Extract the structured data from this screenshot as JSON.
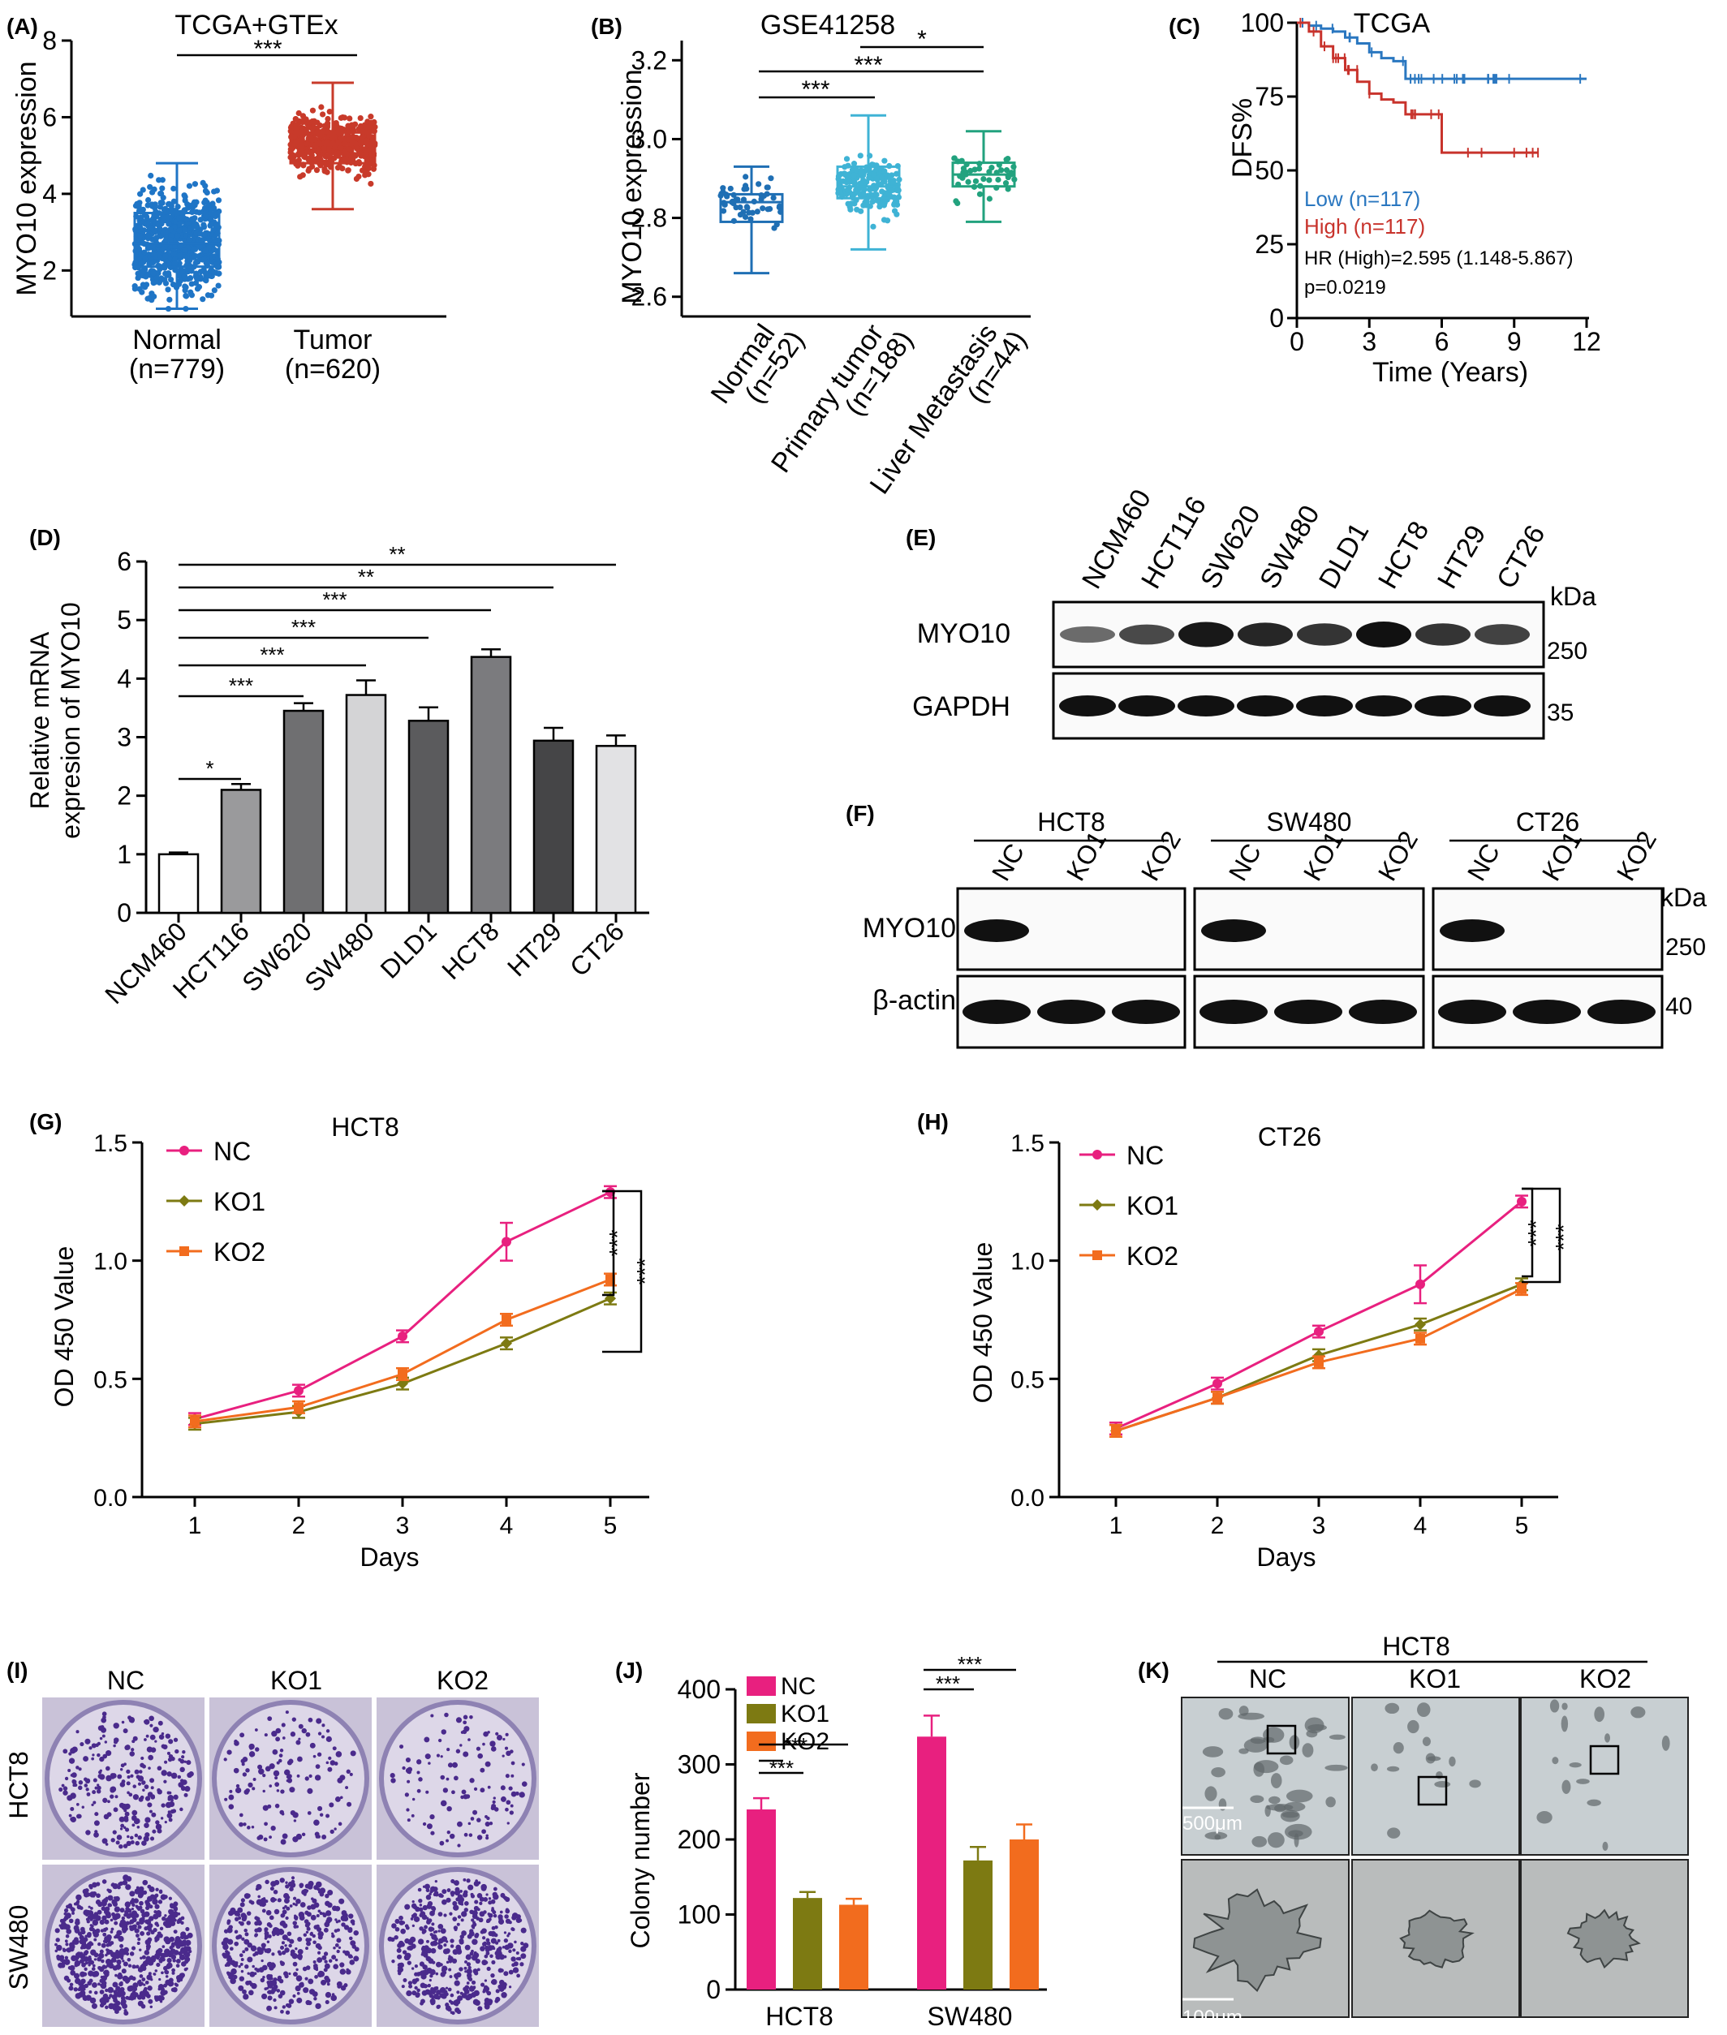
{
  "figure": {
    "panels": {
      "A": {
        "letter": "(A)",
        "title": "TCGA+GTEx",
        "ylabel": "MYO10 expression",
        "yticks": [
          "2",
          "4",
          "6",
          "8"
        ],
        "groups": [
          {
            "name": "Normal",
            "n": "(n=779)"
          },
          {
            "name": "Tumor",
            "n": "(n=620)"
          }
        ],
        "sig": "***"
      },
      "B": {
        "letter": "(B)",
        "title": "GSE41258",
        "ylabel": "MYO10 expression",
        "yticks": [
          "2.6",
          "2.8",
          "3.0",
          "3.2"
        ],
        "groups": [
          {
            "name": "Normal",
            "n": "(n=52)"
          },
          {
            "name": "Primary tumor",
            "n": "(n=188)"
          },
          {
            "name": "Liver Metastasis",
            "n": "(n=44)"
          }
        ],
        "sig": [
          "***",
          "***",
          "*"
        ]
      },
      "C": {
        "letter": "(C)",
        "title": "TCGA",
        "ylabel": "DFS%",
        "xlabel": "Time (Years)",
        "yticks": [
          "0",
          "25",
          "50",
          "75",
          "100"
        ],
        "xticks": [
          "0",
          "3",
          "6",
          "9",
          "12"
        ],
        "legend_low": "Low (n=117)",
        "legend_high": "High (n=117)",
        "hr": "HR (High)=2.595 (1.148-5.867)",
        "p": "p=0.0219"
      },
      "D": {
        "letter": "(D)",
        "ylabel_line1": "Relative mRNA",
        "ylabel_line2": "expresion of MYO10",
        "yticks": [
          "0",
          "1",
          "2",
          "3",
          "4",
          "5",
          "6"
        ],
        "sig": [
          "*",
          "***",
          "***",
          "***",
          "***",
          "**",
          "**"
        ]
      },
      "E": {
        "letter": "(E)",
        "lanes": [
          "NCM460",
          "HCT116",
          "SW620",
          "SW480",
          "DLD1",
          "HCT8",
          "HT29",
          "CT26"
        ],
        "rows": [
          "MYO10",
          "GAPDH"
        ],
        "kda": "kDa",
        "markers": [
          "250",
          "35"
        ]
      },
      "F": {
        "letter": "(F)",
        "groups": [
          "HCT8",
          "SW480",
          "CT26"
        ],
        "lanes": [
          "NC",
          "KO1",
          "KO2"
        ],
        "rows": [
          "MYO10",
          "β-actin"
        ],
        "kda": "kDa",
        "markers": [
          "250",
          "40"
        ]
      },
      "G": {
        "letter": "(G)",
        "title": "HCT8",
        "ylabel": "OD 450 Value",
        "xlabel": "Days",
        "yticks": [
          "0.0",
          "0.5",
          "1.0",
          "1.5"
        ],
        "xticks": [
          "1",
          "2",
          "3",
          "4",
          "5"
        ],
        "sig": [
          "***",
          "***"
        ]
      },
      "H": {
        "letter": "(H)",
        "title": "CT26",
        "ylabel": "OD 450 Value",
        "xlabel": "Days",
        "yticks": [
          "0.0",
          "0.5",
          "1.0",
          "1.5"
        ],
        "xticks": [
          "1",
          "2",
          "3",
          "4",
          "5"
        ],
        "sig": [
          "***",
          "***"
        ]
      },
      "I": {
        "letter": "(I)",
        "cols": [
          "NC",
          "KO1",
          "KO2"
        ],
        "rows": [
          "HCT8",
          "SW480"
        ]
      },
      "J": {
        "letter": "(J)",
        "ylabel": "Colony number",
        "yticks": [
          "0",
          "100",
          "200",
          "300",
          "400"
        ],
        "groups": [
          "HCT8",
          "SW480"
        ],
        "sig": [
          "***",
          "***",
          "***",
          "***"
        ]
      },
      "K": {
        "letter": "(K)",
        "title": "HCT8",
        "cols": [
          "NC",
          "KO1",
          "KO2"
        ],
        "scale_top": "500μm",
        "scale_bottom": "100μm"
      }
    },
    "colors": {
      "low": "#2a77c0",
      "high": "#c8332c",
      "nc": "#e8207f",
      "ko1": "#7d7a12",
      "ko2": "#f26c1e",
      "normalA": "#1f75c6",
      "tumorA": "#c83a2a",
      "normalB": "#1f6fb4",
      "primaryB": "#3fb3d5",
      "metB": "#22a27e",
      "crystal_violet": "#4a2a8c"
    }
  },
  "chart_data": [
    {
      "panel": "A",
      "type": "box",
      "title": "TCGA+GTEx",
      "ylabel": "MYO10 expression",
      "ylim": [
        0.8,
        8
      ],
      "categories": [
        "Normal (n=779)",
        "Tumor (n=620)"
      ],
      "boxes": [
        {
          "name": "Normal",
          "min": 1.0,
          "q1": 2.1,
          "median": 2.7,
          "q3": 3.5,
          "max": 4.8
        },
        {
          "name": "Tumor",
          "min": 3.6,
          "q1": 4.8,
          "median": 5.3,
          "q3": 5.6,
          "max": 6.9
        }
      ]
    },
    {
      "panel": "B",
      "type": "box",
      "title": "GSE41258",
      "ylabel": "MYO10 expression",
      "ylim": [
        2.55,
        3.25
      ],
      "categories": [
        "Normal (n=52)",
        "Primary tumor (n=188)",
        "Liver Metastasis (n=44)"
      ],
      "boxes": [
        {
          "name": "Normal",
          "min": 2.66,
          "q1": 2.79,
          "median": 2.84,
          "q3": 2.86,
          "max": 2.93
        },
        {
          "name": "Primary tumor",
          "min": 2.72,
          "q1": 2.85,
          "median": 2.88,
          "q3": 2.93,
          "max": 3.06
        },
        {
          "name": "Liver Metastasis",
          "min": 2.79,
          "q1": 2.88,
          "median": 2.91,
          "q3": 2.94,
          "max": 3.02
        }
      ]
    },
    {
      "panel": "C",
      "type": "line",
      "title": "TCGA",
      "xlabel": "Time (Years)",
      "ylabel": "DFS%",
      "xlim": [
        0,
        12
      ],
      "ylim": [
        0,
        100
      ],
      "series": [
        {
          "name": "Low (n=117)",
          "x": [
            0,
            0.5,
            1,
            1.5,
            2,
            2.5,
            3,
            3.5,
            4,
            4.5,
            6,
            9,
            12
          ],
          "y": [
            100,
            99,
            98,
            97,
            95,
            93,
            90,
            88,
            87,
            81,
            81,
            81,
            81
          ]
        },
        {
          "name": "High (n=117)",
          "x": [
            0,
            0.5,
            1,
            1.5,
            2,
            2.5,
            3,
            3.5,
            4,
            4.5,
            6,
            10
          ],
          "y": [
            100,
            97,
            92,
            88,
            84,
            80,
            76,
            74,
            73,
            69,
            56,
            56
          ]
        }
      ]
    },
    {
      "panel": "D",
      "type": "bar",
      "ylabel": "Relative mRNA expresion of MYO10",
      "ylim": [
        0,
        6
      ],
      "categories": [
        "NCM460",
        "HCT116",
        "SW620",
        "SW480",
        "DLD1",
        "HCT8",
        "HT29",
        "CT26"
      ],
      "values": [
        1.0,
        2.1,
        3.45,
        3.72,
        3.28,
        4.37,
        2.94,
        2.85
      ],
      "errors": [
        0.03,
        0.1,
        0.13,
        0.25,
        0.23,
        0.13,
        0.22,
        0.18
      ]
    },
    {
      "panel": "G",
      "type": "line",
      "title": "HCT8",
      "xlabel": "Days",
      "ylabel": "OD 450 Value",
      "ylim": [
        0,
        1.5
      ],
      "x": [
        1,
        2,
        3,
        4,
        5
      ],
      "series": [
        {
          "name": "NC",
          "values": [
            0.33,
            0.45,
            0.68,
            1.08,
            1.29
          ]
        },
        {
          "name": "KO1",
          "values": [
            0.31,
            0.36,
            0.48,
            0.65,
            0.84
          ]
        },
        {
          "name": "KO2",
          "values": [
            0.32,
            0.38,
            0.52,
            0.75,
            0.92
          ]
        }
      ]
    },
    {
      "panel": "H",
      "type": "line",
      "title": "CT26",
      "xlabel": "Days",
      "ylabel": "OD 450 Value",
      "ylim": [
        0,
        1.5
      ],
      "x": [
        1,
        2,
        3,
        4,
        5
      ],
      "series": [
        {
          "name": "NC",
          "values": [
            0.29,
            0.48,
            0.7,
            0.9,
            1.25
          ]
        },
        {
          "name": "KO1",
          "values": [
            0.28,
            0.42,
            0.6,
            0.73,
            0.9
          ]
        },
        {
          "name": "KO2",
          "values": [
            0.28,
            0.42,
            0.57,
            0.67,
            0.88
          ]
        }
      ]
    },
    {
      "panel": "J",
      "type": "bar",
      "ylabel": "Colony number",
      "ylim": [
        0,
        400
      ],
      "categories": [
        "HCT8",
        "SW480"
      ],
      "series": [
        {
          "name": "NC",
          "values": [
            240,
            337
          ],
          "errors": [
            15,
            28
          ]
        },
        {
          "name": "KO1",
          "values": [
            122,
            172
          ],
          "errors": [
            8,
            18
          ]
        },
        {
          "name": "KO2",
          "values": [
            113,
            200
          ],
          "errors": [
            8,
            20
          ]
        }
      ]
    }
  ]
}
